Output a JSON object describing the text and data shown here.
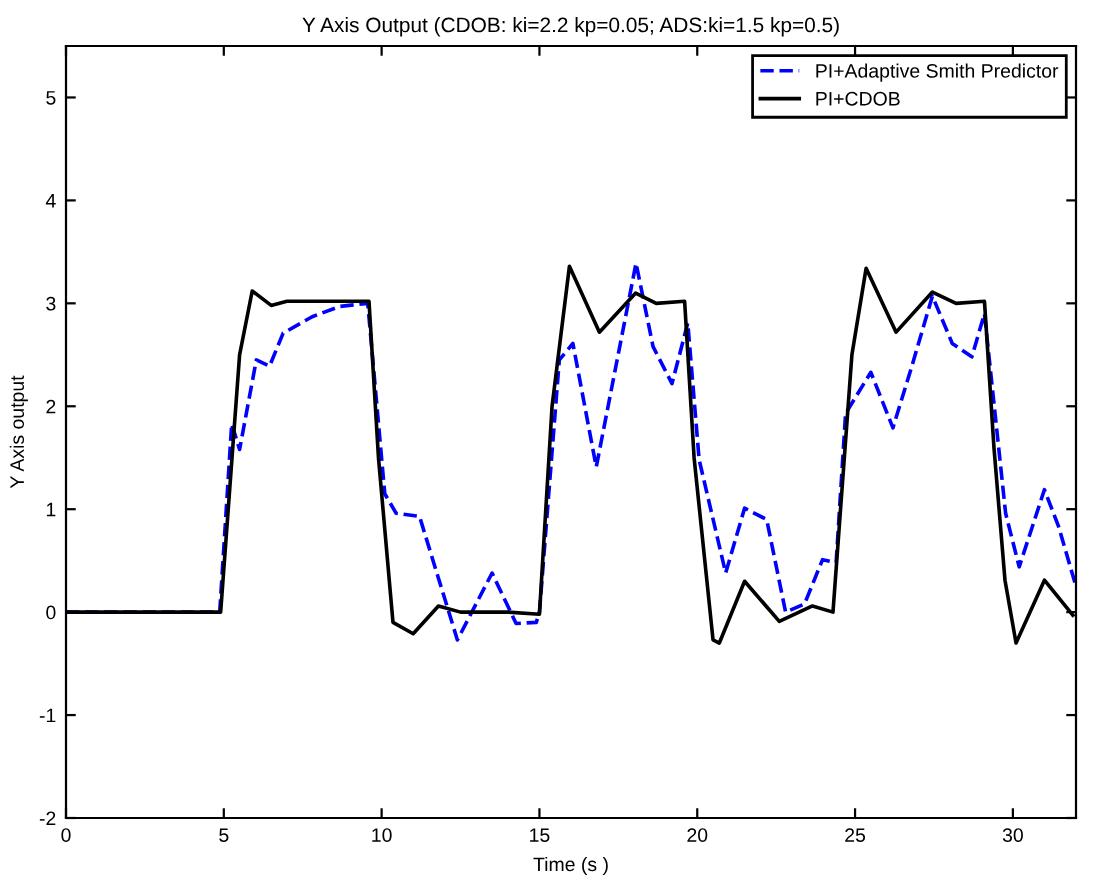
{
  "chart_data": {
    "type": "line",
    "title": "Y Axis Output (CDOB: ki=2.2 kp=0.05; ADS:ki=1.5 kp=0.5)",
    "xlabel": "Time (s )",
    "ylabel": "Y Axis output",
    "series": [
      {
        "name": "PI+Adaptive Smith Predictor",
        "color": "#0000ff",
        "line_style": "dashed",
        "x": [
          0,
          4.87,
          5.25,
          5.5,
          6.03,
          6.45,
          6.88,
          7.8,
          8.67,
          9.56,
          10.1,
          10.46,
          11.2,
          12.4,
          13.5,
          14.26,
          14.9,
          15.0,
          15.63,
          16.06,
          16.8,
          18.06,
          18.6,
          19.2,
          19.7,
          20.06,
          20.9,
          21.5,
          22.2,
          22.8,
          23.4,
          23.97,
          24.4,
          24.7,
          25.5,
          26.2,
          26.8,
          27.45,
          28.08,
          28.7,
          29.1,
          29.77,
          30.2,
          31.0,
          31.45,
          32.0
        ],
        "values": [
          0,
          0,
          1.83,
          1.58,
          2.45,
          2.39,
          2.71,
          2.87,
          2.97,
          3.0,
          1.15,
          0.96,
          0.93,
          -0.27,
          0.38,
          -0.11,
          -0.1,
          0,
          2.45,
          2.61,
          1.41,
          3.39,
          2.58,
          2.22,
          2.81,
          1.48,
          0.38,
          1.01,
          0.9,
          0.0,
          0.08,
          0.51,
          0.48,
          1.93,
          2.33,
          1.79,
          2.39,
          3.07,
          2.61,
          2.48,
          2.9,
          0.96,
          0.44,
          1.19,
          0.83,
          0.25
        ]
      },
      {
        "name": "PI+CDOB",
        "color": "#000000",
        "line_style": "solid",
        "x": [
          0,
          4.9,
          5.5,
          5.9,
          6.5,
          7.0,
          9.6,
          9.9,
          10.36,
          11.0,
          11.8,
          12.5,
          14.0,
          15.0,
          15.4,
          15.95,
          16.9,
          18.05,
          18.7,
          19.6,
          19.9,
          20.5,
          20.7,
          21.5,
          22.6,
          23.65,
          24.3,
          24.9,
          25.35,
          26.3,
          27.45,
          28.2,
          29.1,
          29.4,
          29.75,
          30.1,
          31.0,
          31.9
        ],
        "values": [
          0,
          0,
          2.5,
          3.12,
          2.98,
          3.02,
          3.02,
          1.5,
          -0.1,
          -0.21,
          0.06,
          0,
          0,
          -0.02,
          2.0,
          3.36,
          2.72,
          3.1,
          3.0,
          3.02,
          1.5,
          -0.27,
          -0.3,
          0.3,
          -0.09,
          0.06,
          0.0,
          2.5,
          3.34,
          2.72,
          3.11,
          3.0,
          3.02,
          1.6,
          0.31,
          -0.3,
          0.31,
          -0.03
        ]
      }
    ],
    "xlim": [
      0,
      32
    ],
    "xticks": [
      0,
      5,
      10,
      15,
      20,
      25,
      30
    ],
    "ylim": [
      -2,
      5.5
    ],
    "yticks": [
      -2,
      -1,
      0,
      1,
      2,
      3,
      4,
      5
    ],
    "legend": "top right",
    "grid": false
  }
}
